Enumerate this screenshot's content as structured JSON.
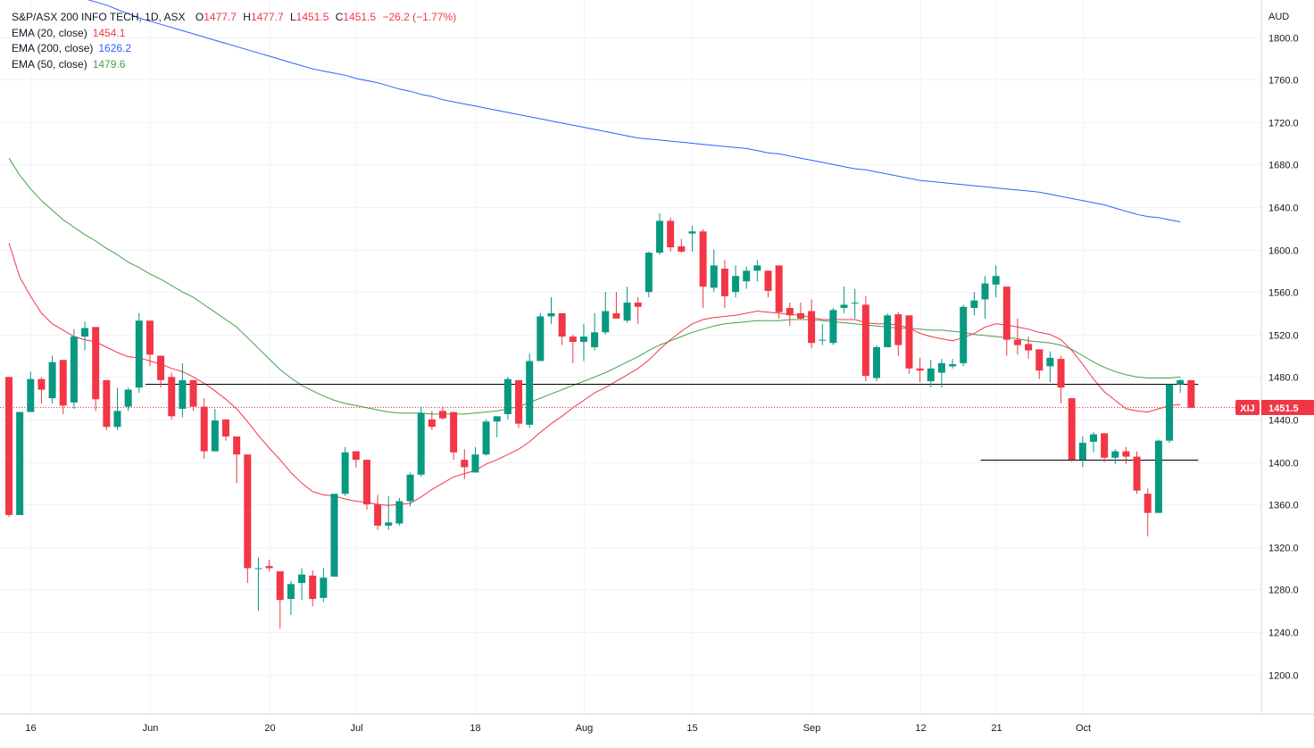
{
  "header": {
    "symbol_title": "S&P/ASX 200 INFO TECH, 1D, ASX",
    "ohlc": {
      "o_label": "O",
      "o": "1477.7",
      "h_label": "H",
      "h": "1477.7",
      "l_label": "L",
      "l": "1451.5",
      "c_label": "C",
      "c": "1451.5",
      "change": "−26.2 (−1.77%)"
    },
    "indicators": [
      {
        "label": "EMA (20, close)",
        "value": "1454.1",
        "color": "#f23645"
      },
      {
        "label": "EMA (200, close)",
        "value": "1626.2",
        "color": "#2962ff"
      },
      {
        "label": "EMA (50, close)",
        "value": "1479.6",
        "color": "#43a047"
      }
    ]
  },
  "price_axis": {
    "currency": "AUD",
    "ticks": [
      "1800.0",
      "1760.0",
      "1720.0",
      "1680.0",
      "1640.0",
      "1600.0",
      "1560.0",
      "1520.0",
      "1480.0",
      "1440.0",
      "1400.0",
      "1360.0",
      "1320.0",
      "1280.0",
      "1240.0",
      "1200.0"
    ]
  },
  "price_tag": {
    "symbol": "XIJ",
    "price": "1451.5"
  },
  "colors": {
    "up": "#26a69a",
    "up_body": "#089981",
    "down": "#f23645",
    "ema20": "#f23645",
    "ema50": "#43a047",
    "ema200": "#2962ff",
    "grid": "#f0f3fa",
    "text": "#131722"
  },
  "chart_data": {
    "type": "candlestick",
    "title": "S&P/ASX 200 INFO TECH, 1D, ASX",
    "ylim": [
      1172,
      1830
    ],
    "grid": true,
    "time_labels": [
      {
        "index": 2,
        "label": "16"
      },
      {
        "index": 13,
        "label": "Jun"
      },
      {
        "index": 24,
        "label": "20"
      },
      {
        "index": 32,
        "label": "Jul"
      },
      {
        "index": 43,
        "label": "18"
      },
      {
        "index": 53,
        "label": "Aug"
      },
      {
        "index": 63,
        "label": "15"
      },
      {
        "index": 74,
        "label": "Sep"
      },
      {
        "index": 84,
        "label": "12"
      },
      {
        "index": 91,
        "label": "21"
      },
      {
        "index": 99,
        "label": "Oct"
      }
    ],
    "candles": [
      [
        1480,
        1480,
        1348,
        1350
      ],
      [
        1350,
        1447,
        1350,
        1447
      ],
      [
        1447,
        1485,
        1447,
        1478
      ],
      [
        1478,
        1480,
        1455,
        1468
      ],
      [
        1460,
        1500,
        1455,
        1494
      ],
      [
        1496,
        1496,
        1445,
        1453
      ],
      [
        1456,
        1525,
        1450,
        1518
      ],
      [
        1518,
        1532,
        1505,
        1526
      ],
      [
        1527,
        1527,
        1448,
        1459
      ],
      [
        1477,
        1477,
        1430,
        1433
      ],
      [
        1433,
        1470,
        1430,
        1448
      ],
      [
        1452,
        1470,
        1448,
        1468
      ],
      [
        1470,
        1540,
        1465,
        1533
      ],
      [
        1533,
        1533,
        1490,
        1501
      ],
      [
        1500,
        1500,
        1470,
        1477
      ],
      [
        1480,
        1484,
        1440,
        1443
      ],
      [
        1450,
        1493,
        1442,
        1477
      ],
      [
        1477,
        1477,
        1448,
        1452
      ],
      [
        1452,
        1460,
        1403,
        1410
      ],
      [
        1410,
        1450,
        1410,
        1439
      ],
      [
        1440,
        1440,
        1420,
        1424
      ],
      [
        1424,
        1424,
        1380,
        1407
      ],
      [
        1407,
        1407,
        1286,
        1300
      ],
      [
        1300,
        1310,
        1260,
        1300
      ],
      [
        1302,
        1308,
        1297,
        1300
      ],
      [
        1297,
        1297,
        1243,
        1270
      ],
      [
        1271,
        1288,
        1256,
        1285
      ],
      [
        1286,
        1300,
        1270,
        1294
      ],
      [
        1293,
        1298,
        1264,
        1271
      ],
      [
        1272,
        1300,
        1268,
        1291
      ],
      [
        1292,
        1370,
        1292,
        1370
      ],
      [
        1370,
        1414,
        1368,
        1409
      ],
      [
        1410,
        1410,
        1395,
        1402
      ],
      [
        1402,
        1402,
        1355,
        1360
      ],
      [
        1360,
        1369,
        1336,
        1340
      ],
      [
        1340,
        1368,
        1336,
        1343
      ],
      [
        1342,
        1366,
        1340,
        1363
      ],
      [
        1363,
        1390,
        1358,
        1388
      ],
      [
        1388,
        1452,
        1386,
        1446
      ],
      [
        1440,
        1448,
        1430,
        1433
      ],
      [
        1448,
        1452,
        1440,
        1441
      ],
      [
        1447,
        1447,
        1402,
        1409
      ],
      [
        1402,
        1412,
        1384,
        1395
      ],
      [
        1390,
        1414,
        1390,
        1407
      ],
      [
        1407,
        1440,
        1406,
        1438
      ],
      [
        1438,
        1442,
        1423,
        1443
      ],
      [
        1445,
        1480,
        1440,
        1478
      ],
      [
        1477,
        1477,
        1432,
        1436
      ],
      [
        1435,
        1502,
        1432,
        1495
      ],
      [
        1495,
        1540,
        1495,
        1537
      ],
      [
        1537,
        1555,
        1530,
        1540
      ],
      [
        1540,
        1540,
        1510,
        1518
      ],
      [
        1518,
        1520,
        1493,
        1513
      ],
      [
        1513,
        1530,
        1495,
        1518
      ],
      [
        1508,
        1540,
        1505,
        1522
      ],
      [
        1522,
        1560,
        1520,
        1542
      ],
      [
        1540,
        1560,
        1538,
        1535
      ],
      [
        1533,
        1565,
        1531,
        1550
      ],
      [
        1550,
        1555,
        1530,
        1546
      ],
      [
        1560,
        1598,
        1555,
        1597
      ],
      [
        1597,
        1634,
        1595,
        1627
      ],
      [
        1627,
        1630,
        1598,
        1602
      ],
      [
        1603,
        1610,
        1597,
        1598
      ],
      [
        1615,
        1622,
        1598,
        1617
      ],
      [
        1617,
        1619,
        1545,
        1565
      ],
      [
        1564,
        1600,
        1560,
        1585
      ],
      [
        1582,
        1590,
        1545,
        1556
      ],
      [
        1560,
        1585,
        1555,
        1575
      ],
      [
        1570,
        1584,
        1563,
        1580
      ],
      [
        1580,
        1590,
        1570,
        1585
      ],
      [
        1580,
        1580,
        1555,
        1561
      ],
      [
        1585,
        1585,
        1535,
        1541
      ],
      [
        1545,
        1550,
        1528,
        1538
      ],
      [
        1540,
        1550,
        1534,
        1535
      ],
      [
        1542,
        1553,
        1507,
        1512
      ],
      [
        1515,
        1530,
        1510,
        1515
      ],
      [
        1512,
        1545,
        1510,
        1543
      ],
      [
        1545,
        1565,
        1540,
        1548
      ],
      [
        1550,
        1563,
        1535,
        1550
      ],
      [
        1548,
        1556,
        1476,
        1481
      ],
      [
        1479,
        1510,
        1476,
        1508
      ],
      [
        1508,
        1540,
        1508,
        1538
      ],
      [
        1539,
        1541,
        1500,
        1510
      ],
      [
        1538,
        1538,
        1483,
        1488
      ],
      [
        1488,
        1498,
        1475,
        1486
      ],
      [
        1476,
        1496,
        1470,
        1488
      ],
      [
        1484,
        1497,
        1470,
        1493
      ],
      [
        1490,
        1497,
        1488,
        1492
      ],
      [
        1493,
        1548,
        1490,
        1546
      ],
      [
        1545,
        1560,
        1538,
        1552
      ],
      [
        1553,
        1575,
        1535,
        1568
      ],
      [
        1567,
        1585,
        1555,
        1575
      ],
      [
        1565,
        1565,
        1500,
        1515
      ],
      [
        1515,
        1535,
        1501,
        1510
      ],
      [
        1511,
        1518,
        1497,
        1505
      ],
      [
        1506,
        1506,
        1478,
        1486
      ],
      [
        1490,
        1504,
        1475,
        1498
      ],
      [
        1497,
        1500,
        1455,
        1470
      ],
      [
        1460,
        1460,
        1400,
        1402
      ],
      [
        1402,
        1424,
        1395,
        1418
      ],
      [
        1419,
        1428,
        1409,
        1426
      ],
      [
        1427,
        1427,
        1400,
        1404
      ],
      [
        1404,
        1412,
        1398,
        1410
      ],
      [
        1410,
        1414,
        1398,
        1405
      ],
      [
        1405,
        1410,
        1370,
        1373
      ],
      [
        1370,
        1375,
        1330,
        1352
      ],
      [
        1352,
        1421,
        1352,
        1420
      ],
      [
        1420,
        1473,
        1418,
        1473
      ],
      [
        1473,
        1478,
        1465,
        1477
      ],
      [
        1477,
        1477,
        1451,
        1451
      ]
    ],
    "ema20": [
      1606,
      1574,
      1556,
      1540,
      1530,
      1524,
      1518,
      1515,
      1513,
      1508,
      1503,
      1499,
      1498,
      1495,
      1492,
      1488,
      1485,
      1480,
      1474,
      1467,
      1459,
      1450,
      1438,
      1425,
      1413,
      1402,
      1390,
      1380,
      1372,
      1369,
      1368,
      1365,
      1363,
      1362,
      1360,
      1359,
      1360,
      1361,
      1367,
      1374,
      1380,
      1386,
      1389,
      1392,
      1398,
      1402,
      1407,
      1412,
      1419,
      1428,
      1436,
      1443,
      1451,
      1458,
      1465,
      1470,
      1476,
      1482,
      1488,
      1496,
      1506,
      1515,
      1523,
      1530,
      1534,
      1536,
      1537,
      1538,
      1540,
      1542,
      1541,
      1540,
      1539,
      1538,
      1536,
      1534,
      1534,
      1534,
      1534,
      1531,
      1530,
      1530,
      1529,
      1526,
      1521,
      1518,
      1516,
      1514,
      1517,
      1521,
      1527,
      1530,
      1529,
      1527,
      1525,
      1522,
      1520,
      1515,
      1505,
      1492,
      1478,
      1466,
      1458,
      1450,
      1448,
      1447,
      1450,
      1453,
      1454
    ],
    "ema50": [
      1686,
      1670,
      1657,
      1646,
      1637,
      1628,
      1621,
      1614,
      1608,
      1601,
      1595,
      1588,
      1583,
      1577,
      1572,
      1566,
      1560,
      1555,
      1548,
      1541,
      1534,
      1527,
      1517,
      1507,
      1497,
      1487,
      1479,
      1472,
      1467,
      1462,
      1458,
      1455,
      1453,
      1451,
      1449,
      1447,
      1446,
      1446,
      1446,
      1445,
      1445,
      1445,
      1445,
      1446,
      1447,
      1448,
      1450,
      1452,
      1456,
      1460,
      1464,
      1468,
      1472,
      1476,
      1480,
      1484,
      1489,
      1494,
      1499,
      1505,
      1510,
      1514,
      1518,
      1522,
      1525,
      1528,
      1530,
      1531,
      1532,
      1533,
      1533,
      1533,
      1534,
      1534,
      1534,
      1533,
      1532,
      1531,
      1530,
      1529,
      1528,
      1527,
      1526,
      1526,
      1525,
      1524,
      1524,
      1523,
      1522,
      1520,
      1519,
      1518,
      1517,
      1516,
      1514,
      1513,
      1512,
      1510,
      1506,
      1500,
      1494,
      1489,
      1485,
      1482,
      1480,
      1479,
      1479,
      1479,
      1480
    ],
    "ema200": [
      1845,
      1845,
      1844,
      1843,
      1842,
      1840,
      1838,
      1836,
      1833,
      1830,
      1826,
      1822,
      1818,
      1815,
      1812,
      1809,
      1806,
      1803,
      1800,
      1797,
      1794,
      1791,
      1788,
      1785,
      1782,
      1779,
      1776,
      1773,
      1770,
      1768,
      1766,
      1764,
      1761,
      1759,
      1757,
      1754,
      1751,
      1749,
      1746,
      1744,
      1741,
      1739,
      1737,
      1735,
      1733,
      1731,
      1729,
      1727,
      1725,
      1723,
      1721,
      1719,
      1717,
      1715,
      1713,
      1711,
      1709,
      1707,
      1705,
      1704,
      1703,
      1702,
      1701,
      1700,
      1699,
      1698,
      1697,
      1696,
      1695,
      1693,
      1691,
      1690,
      1688,
      1686,
      1684,
      1682,
      1680,
      1678,
      1676,
      1675,
      1673,
      1671,
      1669,
      1667,
      1665,
      1664,
      1663,
      1662,
      1661,
      1660,
      1659,
      1658,
      1657,
      1656,
      1655,
      1654,
      1652,
      1650,
      1648,
      1646,
      1644,
      1642,
      1639,
      1636,
      1633,
      1631,
      1630,
      1628,
      1626
    ],
    "levels": [
      {
        "price": 1473.5,
        "start_index": 13,
        "end_index": 109,
        "style": "solid",
        "color": "#000000"
      },
      {
        "price": 1402.5,
        "start_index": 90,
        "end_index": 109,
        "style": "solid",
        "color": "#000000"
      },
      {
        "price": 1451.5,
        "start_index": 0,
        "end_index": 109,
        "style": "dotted",
        "color": "#f23645"
      }
    ]
  }
}
